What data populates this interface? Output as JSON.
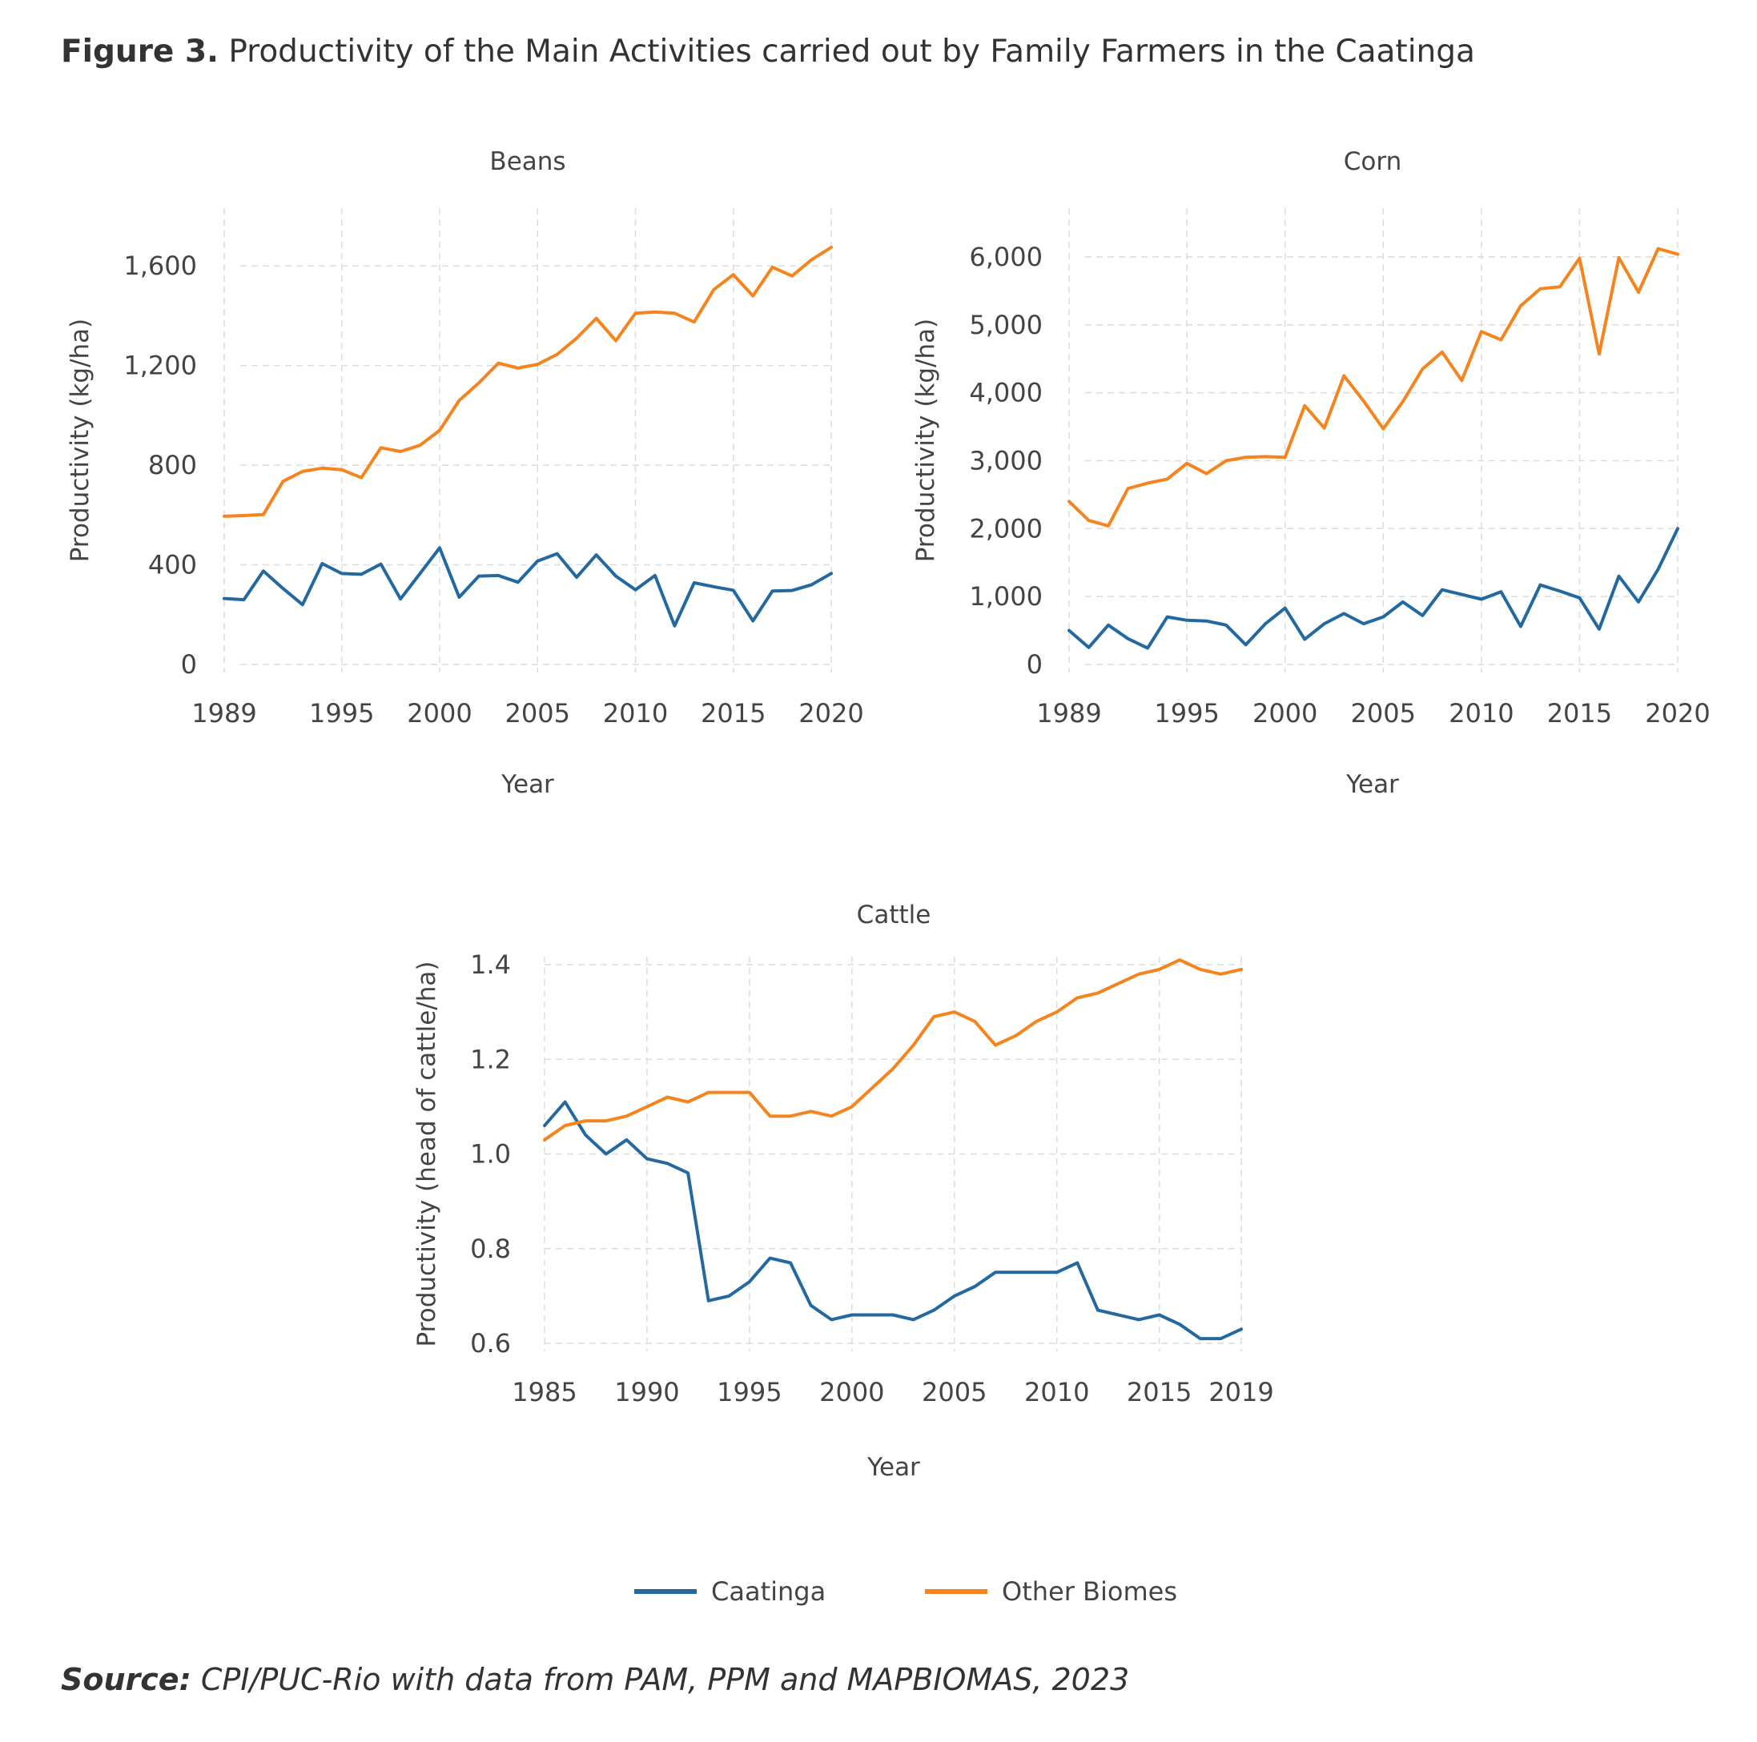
{
  "figure": {
    "label": "Figure 3.",
    "title": "Productivity of the Main Activities carried out by Family Farmers in the Caatinga",
    "source_label": "Source:",
    "source_text": "CPI/PUC-Rio with data from PAM, PPM and MAPBIOMAS, 2023"
  },
  "legend": [
    {
      "name": "Caatinga",
      "color": "#2369a0"
    },
    {
      "name": "Other Biomes",
      "color": "#f5841f"
    }
  ],
  "chart_data": [
    {
      "type": "line",
      "title": "Beans",
      "xlabel": "Year",
      "ylabel": "Productivity (kg/ha)",
      "xlim": [
        1989,
        2020
      ],
      "ylim": [
        0,
        1800
      ],
      "xticks": [
        1989,
        1995,
        2000,
        2005,
        2010,
        2015,
        2020
      ],
      "yticks": [
        0,
        400,
        800,
        1200,
        1600
      ],
      "x": [
        1989,
        1990,
        1991,
        1992,
        1993,
        1994,
        1995,
        1996,
        1997,
        1998,
        1999,
        2000,
        2001,
        2002,
        2003,
        2004,
        2005,
        2006,
        2007,
        2008,
        2009,
        2010,
        2011,
        2012,
        2013,
        2014,
        2015,
        2016,
        2017,
        2018,
        2019,
        2020
      ],
      "series": [
        {
          "name": "Caatinga",
          "values": [
            265,
            260,
            375,
            305,
            240,
            405,
            365,
            362,
            403,
            263,
            365,
            468,
            270,
            355,
            357,
            330,
            415,
            445,
            350,
            440,
            355,
            300,
            357,
            155,
            328,
            312,
            298,
            175,
            295,
            297,
            320,
            365
          ]
        },
        {
          "name": "Other Biomes",
          "values": [
            595,
            598,
            602,
            735,
            775,
            788,
            782,
            750,
            870,
            855,
            880,
            940,
            1060,
            1130,
            1210,
            1190,
            1205,
            1245,
            1310,
            1390,
            1300,
            1410,
            1415,
            1410,
            1375,
            1505,
            1565,
            1480,
            1595,
            1560,
            1625,
            1675
          ]
        }
      ]
    },
    {
      "type": "line",
      "title": "Corn",
      "xlabel": "Year",
      "ylabel": "Productivity (kg/ha)",
      "xlim": [
        1989,
        2020
      ],
      "ylim": [
        0,
        6600
      ],
      "xticks": [
        1989,
        1995,
        2000,
        2005,
        2010,
        2015,
        2020
      ],
      "yticks": [
        0,
        1000,
        2000,
        3000,
        4000,
        5000,
        6000
      ],
      "x": [
        1989,
        1990,
        1991,
        1992,
        1993,
        1994,
        1995,
        1996,
        1997,
        1998,
        1999,
        2000,
        2001,
        2002,
        2003,
        2004,
        2005,
        2006,
        2007,
        2008,
        2009,
        2010,
        2011,
        2012,
        2013,
        2014,
        2015,
        2016,
        2017,
        2018,
        2019,
        2020
      ],
      "series": [
        {
          "name": "Caatinga",
          "values": [
            500,
            250,
            580,
            380,
            240,
            700,
            650,
            640,
            580,
            290,
            600,
            830,
            370,
            600,
            750,
            600,
            700,
            920,
            720,
            1100,
            1030,
            960,
            1070,
            560,
            1170,
            1080,
            980,
            520,
            1300,
            920,
            1400,
            2000
          ]
        },
        {
          "name": "Other Biomes",
          "values": [
            2400,
            2120,
            2040,
            2590,
            2670,
            2730,
            2960,
            2810,
            3000,
            3050,
            3060,
            3050,
            3810,
            3480,
            4250,
            3880,
            3470,
            3870,
            4350,
            4600,
            4180,
            4900,
            4780,
            5280,
            5530,
            5560,
            5980,
            4570,
            5990,
            5480,
            6120,
            6040
          ]
        }
      ]
    },
    {
      "type": "line",
      "title": "Cattle",
      "xlabel": "Year",
      "ylabel": "Productivity (head of cattle/ha)",
      "xlim": [
        1985,
        2019
      ],
      "ylim": [
        0.6,
        1.4
      ],
      "xticks": [
        1985,
        1990,
        1995,
        2000,
        2005,
        2010,
        2015,
        2019
      ],
      "yticks": [
        0.6,
        0.8,
        1.0,
        1.2,
        1.4
      ],
      "x": [
        1985,
        1986,
        1987,
        1988,
        1989,
        1990,
        1991,
        1992,
        1993,
        1994,
        1995,
        1996,
        1997,
        1998,
        1999,
        2000,
        2001,
        2002,
        2003,
        2004,
        2005,
        2006,
        2007,
        2008,
        2009,
        2010,
        2011,
        2012,
        2013,
        2014,
        2015,
        2016,
        2017,
        2018,
        2019
      ],
      "series": [
        {
          "name": "Caatinga",
          "values": [
            1.06,
            1.11,
            1.04,
            1.0,
            1.03,
            0.99,
            0.98,
            0.96,
            0.69,
            0.7,
            0.73,
            0.78,
            0.77,
            0.68,
            0.65,
            0.66,
            0.66,
            0.66,
            0.65,
            0.67,
            0.7,
            0.72,
            0.75,
            0.75,
            0.75,
            0.75,
            0.77,
            0.67,
            0.66,
            0.65,
            0.66,
            0.64,
            0.61,
            0.61,
            0.63
          ]
        },
        {
          "name": "Other Biomes",
          "values": [
            1.03,
            1.06,
            1.07,
            1.07,
            1.08,
            1.1,
            1.12,
            1.11,
            1.13,
            1.13,
            1.13,
            1.08,
            1.08,
            1.09,
            1.08,
            1.1,
            1.14,
            1.18,
            1.23,
            1.29,
            1.3,
            1.28,
            1.23,
            1.25,
            1.28,
            1.3,
            1.33,
            1.34,
            1.36,
            1.38,
            1.39,
            1.41,
            1.39,
            1.38,
            1.39
          ]
        }
      ]
    }
  ]
}
